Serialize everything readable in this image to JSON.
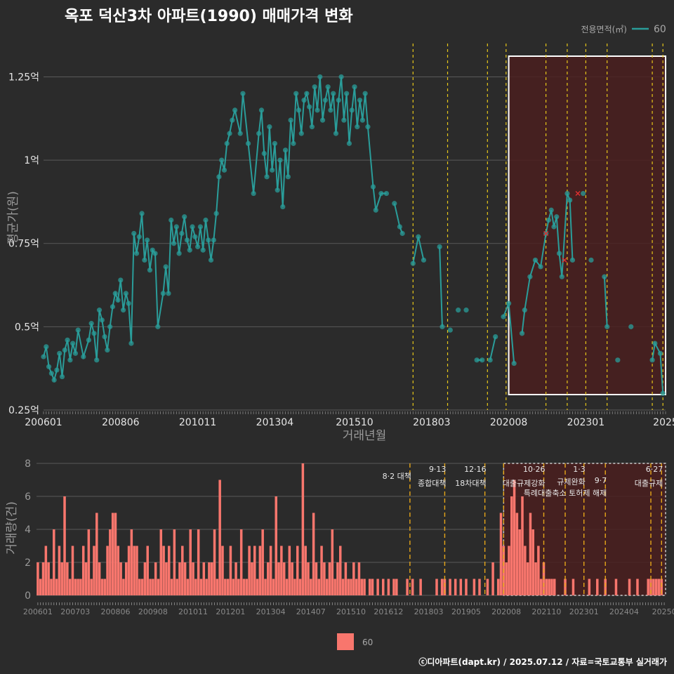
{
  "chart_data": [
    {
      "type": "scatter",
      "title": "옥포 덕산3차 아파트(1990) 매매가격 변화",
      "xlabel": "거래년월",
      "ylabel": "평균가(원)",
      "x_tick_labels": [
        "200601",
        "200806",
        "201011",
        "201304",
        "201510",
        "201803",
        "202008",
        "202301",
        "2025"
      ],
      "y_ticks": [
        0.25,
        0.5,
        0.75,
        1.0,
        1.25
      ],
      "y_tick_labels": [
        "0.25억",
        "0.5억",
        "0.75억",
        "1억",
        "1.25억"
      ],
      "y_unit": "억",
      "ylim": [
        0.25,
        1.35
      ],
      "xlim": [
        "2006-01",
        "2025-07"
      ],
      "grid": true,
      "legend_title": "전용면적(㎡)",
      "legend_position": "top-right",
      "series": [
        {
          "name": "60",
          "color": "#2a9d9a",
          "points": [
            [
              "2006-01",
              0.41
            ],
            [
              "2006-02",
              0.44
            ],
            [
              "2006-03",
              0.38
            ],
            [
              "2006-04",
              0.36
            ],
            [
              "2006-05",
              0.34
            ],
            [
              "2006-06",
              0.37
            ],
            [
              "2006-07",
              0.42
            ],
            [
              "2006-08",
              0.35
            ],
            [
              "2006-09",
              0.43
            ],
            [
              "2006-10",
              0.46
            ],
            [
              "2006-11",
              0.4
            ],
            [
              "2006-12",
              0.45
            ],
            [
              "2007-01",
              0.42
            ],
            [
              "2007-02",
              0.49
            ],
            [
              "2007-04",
              0.41
            ],
            [
              "2007-06",
              0.46
            ],
            [
              "2007-07",
              0.51
            ],
            [
              "2007-08",
              0.48
            ],
            [
              "2007-09",
              0.4
            ],
            [
              "2007-10",
              0.55
            ],
            [
              "2007-11",
              0.52
            ],
            [
              "2007-12",
              0.47
            ],
            [
              "2008-01",
              0.43
            ],
            [
              "2008-02",
              0.5
            ],
            [
              "2008-03",
              0.56
            ],
            [
              "2008-04",
              0.6
            ],
            [
              "2008-05",
              0.58
            ],
            [
              "2008-06",
              0.64
            ],
            [
              "2008-07",
              0.55
            ],
            [
              "2008-08",
              0.6
            ],
            [
              "2008-09",
              0.57
            ],
            [
              "2008-10",
              0.45
            ],
            [
              "2008-11",
              0.78
            ],
            [
              "2008-12",
              0.72
            ],
            [
              "2009-01",
              0.77
            ],
            [
              "2009-02",
              0.84
            ],
            [
              "2009-03",
              0.7
            ],
            [
              "2009-04",
              0.76
            ],
            [
              "2009-05",
              0.67
            ],
            [
              "2009-06",
              0.73
            ],
            [
              "2009-07",
              0.72
            ],
            [
              "2009-08",
              0.5
            ],
            [
              "2009-10",
              0.6
            ],
            [
              "2009-11",
              0.68
            ],
            [
              "2009-12",
              0.6
            ],
            [
              "2010-01",
              0.82
            ],
            [
              "2010-02",
              0.75
            ],
            [
              "2010-03",
              0.8
            ],
            [
              "2010-04",
              0.72
            ],
            [
              "2010-05",
              0.78
            ],
            [
              "2010-06",
              0.83
            ],
            [
              "2010-07",
              0.76
            ],
            [
              "2010-08",
              0.73
            ],
            [
              "2010-09",
              0.8
            ],
            [
              "2010-10",
              0.77
            ],
            [
              "2010-11",
              0.74
            ],
            [
              "2010-12",
              0.8
            ],
            [
              "2011-01",
              0.73
            ],
            [
              "2011-02",
              0.82
            ],
            [
              "2011-03",
              0.76
            ],
            [
              "2011-04",
              0.7
            ],
            [
              "2011-05",
              0.76
            ],
            [
              "2011-06",
              0.84
            ],
            [
              "2011-07",
              0.95
            ],
            [
              "2011-08",
              1.0
            ],
            [
              "2011-09",
              0.97
            ],
            [
              "2011-10",
              1.05
            ],
            [
              "2011-11",
              1.08
            ],
            [
              "2011-12",
              1.12
            ],
            [
              "2012-01",
              1.15
            ],
            [
              "2012-03",
              1.08
            ],
            [
              "2012-04",
              1.2
            ],
            [
              "2012-06",
              1.05
            ],
            [
              "2012-08",
              0.9
            ],
            [
              "2012-10",
              1.08
            ],
            [
              "2012-11",
              1.15
            ],
            [
              "2012-12",
              1.02
            ],
            [
              "2013-01",
              0.95
            ],
            [
              "2013-02",
              1.1
            ],
            [
              "2013-03",
              0.97
            ],
            [
              "2013-04",
              1.05
            ],
            [
              "2013-05",
              0.91
            ],
            [
              "2013-06",
              1.0
            ],
            [
              "2013-07",
              0.86
            ],
            [
              "2013-08",
              1.03
            ],
            [
              "2013-09",
              0.95
            ],
            [
              "2013-10",
              1.12
            ],
            [
              "2013-11",
              1.05
            ],
            [
              "2013-12",
              1.2
            ],
            [
              "2014-01",
              1.15
            ],
            [
              "2014-02",
              1.08
            ],
            [
              "2014-03",
              1.18
            ],
            [
              "2014-04",
              1.2
            ],
            [
              "2014-05",
              1.16
            ],
            [
              "2014-06",
              1.1
            ],
            [
              "2014-07",
              1.22
            ],
            [
              "2014-08",
              1.15
            ],
            [
              "2014-09",
              1.25
            ],
            [
              "2014-10",
              1.12
            ],
            [
              "2014-11",
              1.18
            ],
            [
              "2014-12",
              1.22
            ],
            [
              "2015-01",
              1.15
            ],
            [
              "2015-02",
              1.2
            ],
            [
              "2015-03",
              1.08
            ],
            [
              "2015-04",
              1.18
            ],
            [
              "2015-05",
              1.25
            ],
            [
              "2015-06",
              1.12
            ],
            [
              "2015-07",
              1.2
            ],
            [
              "2015-08",
              1.05
            ],
            [
              "2015-09",
              1.15
            ],
            [
              "2015-10",
              1.22
            ],
            [
              "2015-11",
              1.1
            ],
            [
              "2015-12",
              1.18
            ],
            [
              "2016-01",
              1.12
            ],
            [
              "2016-02",
              1.2
            ],
            [
              "2016-03",
              1.1
            ],
            [
              "2016-05",
              0.92
            ],
            [
              "2016-06",
              0.85
            ],
            [
              "2016-08",
              0.9
            ],
            [
              "2016-10",
              0.9
            ],
            [
              "2017-01",
              0.87
            ],
            [
              "2017-03",
              0.8
            ],
            [
              "2017-04",
              0.78
            ],
            [
              "2017-08",
              0.69
            ],
            [
              "2017-10",
              0.77
            ],
            [
              "2017-12",
              0.7
            ],
            [
              "2018-06",
              0.74
            ],
            [
              "2018-07",
              0.5
            ],
            [
              "2018-10",
              0.49
            ],
            [
              "2019-01",
              0.55
            ],
            [
              "2019-04",
              0.55
            ],
            [
              "2019-08",
              0.4
            ],
            [
              "2019-10",
              0.4
            ],
            [
              "2020-01",
              0.4
            ],
            [
              "2020-03",
              0.47
            ],
            [
              "2020-06",
              0.53
            ],
            [
              "2020-08",
              0.57
            ],
            [
              "2020-10",
              0.39
            ],
            [
              "2021-01",
              0.48
            ],
            [
              "2021-02",
              0.55
            ],
            [
              "2021-04",
              0.65
            ],
            [
              "2021-06",
              0.7
            ],
            [
              "2021-08",
              0.68
            ],
            [
              "2021-10",
              0.78
            ],
            [
              "2021-11",
              0.82
            ],
            [
              "2021-12",
              0.85
            ],
            [
              "2022-01",
              0.8
            ],
            [
              "2022-02",
              0.83
            ],
            [
              "2022-03",
              0.72
            ],
            [
              "2022-04",
              0.65
            ],
            [
              "2022-06",
              0.9
            ],
            [
              "2022-07",
              0.88
            ],
            [
              "2022-08",
              0.7
            ],
            [
              "2022-12",
              0.9
            ],
            [
              "2023-03",
              0.7
            ],
            [
              "2023-08",
              0.65
            ],
            [
              "2023-09",
              0.5
            ],
            [
              "2024-01",
              0.4
            ],
            [
              "2024-06",
              0.5
            ],
            [
              "2025-02",
              0.4
            ],
            [
              "2025-03",
              0.45
            ],
            [
              "2025-05",
              0.42
            ],
            [
              "2025-06",
              0.3
            ]
          ],
          "cancelled": [
            [
              "2021-10",
              0.78
            ],
            [
              "2022-05",
              0.7
            ],
            [
              "2022-10",
              0.9
            ]
          ]
        }
      ]
    },
    {
      "type": "bar",
      "ylabel": "거래량(건)",
      "y_ticks": [
        0,
        2,
        4,
        6,
        8
      ],
      "ylim": [
        0,
        8
      ],
      "x_tick_labels": [
        "200601",
        "200703",
        "200806",
        "200908",
        "201011",
        "201201",
        "201304",
        "201407",
        "201510",
        "201612",
        "201803",
        "201905",
        "202008",
        "202110",
        "202301",
        "202404",
        "20250"
      ],
      "legend_position": "bottom",
      "series": [
        {
          "name": "60",
          "color": "#f8766d",
          "counts": {
            "2006-01": 2,
            "2006-02": 1,
            "2006-03": 2,
            "2006-04": 3,
            "2006-05": 2,
            "2006-06": 1,
            "2006-07": 4,
            "2006-08": 1,
            "2006-09": 3,
            "2006-10": 2,
            "2006-11": 6,
            "2006-12": 2,
            "2007-01": 1,
            "2007-02": 3,
            "2007-03": 1,
            "2007-04": 1,
            "2007-05": 1,
            "2007-06": 3,
            "2007-07": 2,
            "2007-08": 4,
            "2007-09": 1,
            "2007-10": 3,
            "2007-11": 5,
            "2007-12": 2,
            "2008-01": 1,
            "2008-02": 1,
            "2008-03": 3,
            "2008-04": 4,
            "2008-05": 5,
            "2008-06": 5,
            "2008-07": 3,
            "2008-08": 2,
            "2008-09": 1,
            "2008-10": 2,
            "2008-11": 3,
            "2008-12": 4,
            "2009-01": 3,
            "2009-02": 3,
            "2009-03": 1,
            "2009-04": 1,
            "2009-05": 2,
            "2009-06": 3,
            "2009-07": 1,
            "2009-08": 1,
            "2009-09": 2,
            "2009-10": 1,
            "2009-11": 4,
            "2009-12": 3,
            "2010-01": 2,
            "2010-02": 3,
            "2010-03": 1,
            "2010-04": 4,
            "2010-05": 1,
            "2010-06": 2,
            "2010-07": 3,
            "2010-08": 2,
            "2010-09": 1,
            "2010-10": 4,
            "2010-11": 2,
            "2010-12": 1,
            "2011-01": 4,
            "2011-02": 1,
            "2011-03": 2,
            "2011-04": 1,
            "2011-05": 2,
            "2011-06": 2,
            "2011-07": 4,
            "2011-08": 1,
            "2011-09": 7,
            "2011-10": 3,
            "2011-11": 1,
            "2011-12": 1,
            "2012-01": 3,
            "2012-02": 1,
            "2012-03": 2,
            "2012-04": 1,
            "2012-05": 4,
            "2012-06": 1,
            "2012-07": 1,
            "2012-08": 3,
            "2012-09": 2,
            "2012-10": 3,
            "2012-11": 1,
            "2012-12": 3,
            "2013-01": 4,
            "2013-02": 1,
            "2013-03": 2,
            "2013-04": 3,
            "2013-05": 1,
            "2013-06": 6,
            "2013-07": 2,
            "2013-08": 3,
            "2013-09": 2,
            "2013-10": 1,
            "2013-11": 3,
            "2013-12": 2,
            "2014-01": 1,
            "2014-02": 3,
            "2014-03": 1,
            "2014-04": 8,
            "2014-05": 3,
            "2014-06": 2,
            "2014-07": 1,
            "2014-08": 5,
            "2014-09": 2,
            "2014-10": 1,
            "2014-11": 3,
            "2014-12": 2,
            "2015-01": 1,
            "2015-02": 2,
            "2015-03": 4,
            "2015-04": 1,
            "2015-05": 2,
            "2015-06": 3,
            "2015-07": 1,
            "2015-08": 2,
            "2015-09": 1,
            "2015-10": 1,
            "2015-11": 2,
            "2015-12": 1,
            "2016-01": 2,
            "2016-02": 1,
            "2016-03": 1,
            "2016-05": 1,
            "2016-06": 1,
            "2016-08": 1,
            "2016-10": 1,
            "2016-12": 1,
            "2017-02": 1,
            "2017-03": 1,
            "2017-07": 1,
            "2017-09": 1,
            "2017-12": 1,
            "2018-06": 1,
            "2018-08": 1,
            "2018-09": 1,
            "2018-11": 1,
            "2019-01": 1,
            "2019-03": 1,
            "2019-05": 1,
            "2019-08": 1,
            "2019-10": 1,
            "2020-01": 1,
            "2020-03": 2,
            "2020-05": 1,
            "2020-06": 5,
            "2020-07": 3,
            "2020-08": 2,
            "2020-09": 3,
            "2020-10": 6,
            "2020-11": 7,
            "2020-12": 5,
            "2021-01": 4,
            "2021-02": 6,
            "2021-03": 3,
            "2021-04": 2,
            "2021-05": 5,
            "2021-06": 4,
            "2021-07": 2,
            "2021-08": 3,
            "2021-09": 1,
            "2021-10": 2,
            "2021-11": 1,
            "2021-12": 1,
            "2022-01": 1,
            "2022-02": 1,
            "2022-06": 1,
            "2022-09": 1,
            "2023-03": 1,
            "2023-06": 1,
            "2023-09": 1,
            "2024-01": 1,
            "2024-06": 1,
            "2024-09": 1,
            "2025-01": 1,
            "2025-02": 1,
            "2025-03": 1,
            "2025-04": 1,
            "2025-05": 1,
            "2025-06": 1
          }
        }
      ],
      "events": [
        {
          "date": "2017-08",
          "label": "8·2 대책"
        },
        {
          "date": "2018-09",
          "label": "9·13 종합대책"
        },
        {
          "date": "2019-12",
          "label": "12·16 18차대책"
        },
        {
          "date": "2020-07",
          "label": ""
        },
        {
          "date": "2021-10",
          "label": "10·26 대출규제강화"
        },
        {
          "date": "2022-06",
          "label": ""
        },
        {
          "date": "2023-01",
          "label": "1·3 규제완화"
        },
        {
          "date": "2023-09",
          "label": "9·7 특례대출축소 토허제 해제"
        },
        {
          "date": "2025-02",
          "label": ""
        },
        {
          "date": "2025-06",
          "label": "6·27 대출규제"
        }
      ],
      "highlight_range": [
        "2020-07",
        "2025-07"
      ]
    }
  ],
  "footer": "ⓒ디아파트(dapt.kr) / 2025.07.12 / 자료=국토교통부 실거래가",
  "colors": {
    "background": "#2b2b2b",
    "line": "#2a9d9a",
    "bar": "#f8766d",
    "event_line": "#e6c619",
    "highlight": "#4a1f1f"
  }
}
